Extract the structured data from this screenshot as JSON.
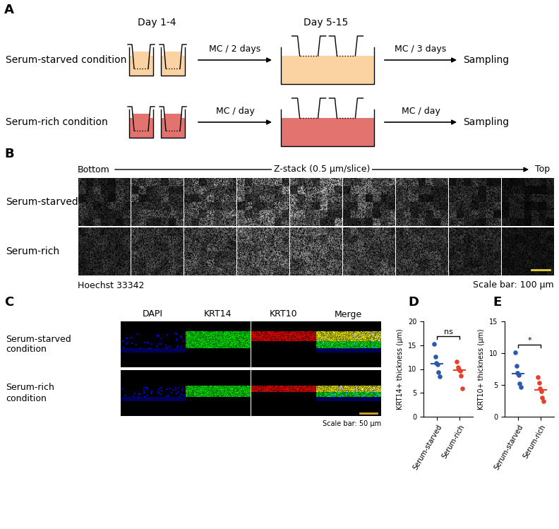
{
  "panel_labels": [
    "A",
    "B",
    "C",
    "D",
    "E"
  ],
  "schematic": {
    "day_labels": [
      "Day 1-4",
      "Day 5-15"
    ],
    "end_label": "Sampling",
    "conditions": [
      {
        "name": "Serum-starved condition",
        "color": "#fbd3a3",
        "first_change": "MC / 2 days",
        "second_change": "MC / 3 days"
      },
      {
        "name": "Serum-rich condition",
        "color": "#e2736f",
        "first_change": "MC / day",
        "second_change": "MC / day"
      }
    ]
  },
  "zstack": {
    "start": "Bottom",
    "axis_label": "Z-stack (0.5 µm/slice)",
    "end": "Top",
    "rows": [
      "Serum-starved",
      "Serum-rich"
    ],
    "stain": "Hoechst 33342",
    "scale_label": "Scale bar: 100 µm",
    "scale_color": "#e6d23a"
  },
  "immunostaining": {
    "channels": [
      "DAPI",
      "KRT14",
      "KRT10",
      "Merge"
    ],
    "rows": [
      "Serum-starved\ncondition",
      "Serum-rich\ncondition"
    ],
    "scale_label": "Scale bar: 50 µm",
    "scale_color": "#d9a326"
  },
  "chart_data": [
    {
      "type": "strip",
      "ylabel": "KRT14+ thickness (µm)",
      "categories": [
        "Serum-starved",
        "Serum-rich"
      ],
      "values": [
        [
          15.3,
          12.6,
          11.2,
          10.9,
          9.3,
          8.5
        ],
        [
          11.6,
          10.3,
          10.0,
          9.6,
          8.6,
          6.0
        ]
      ],
      "colors": [
        "#2c5aa8",
        "#e5402a"
      ],
      "ylim": [
        0,
        20
      ],
      "yticks": [
        0,
        5,
        10,
        15,
        20
      ],
      "annotation": "ns"
    },
    {
      "type": "strip",
      "ylabel": "KRT10+ thickness (µm)",
      "categories": [
        "Serum-starved",
        "Serum-rich"
      ],
      "values": [
        [
          10.1,
          8.0,
          6.9,
          6.6,
          5.2,
          4.7
        ],
        [
          6.2,
          5.3,
          4.5,
          4.0,
          3.0,
          2.5
        ]
      ],
      "colors": [
        "#2c5aa8",
        "#e5402a"
      ],
      "ylim": [
        0,
        15
      ],
      "yticks": [
        0,
        5,
        10,
        15
      ],
      "annotation": "*"
    }
  ]
}
